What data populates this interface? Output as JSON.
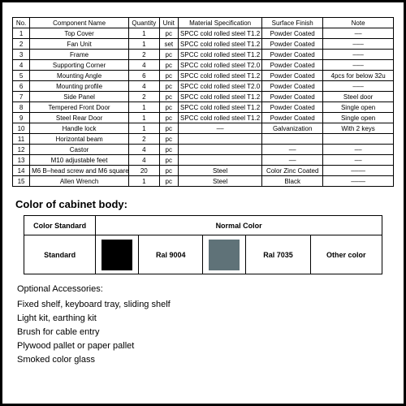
{
  "spec_table": {
    "columns": [
      "No.",
      "Component Name",
      "Quantity",
      "Unit",
      "Material Specification",
      "Surface Finish",
      "Note"
    ],
    "rows": [
      [
        "1",
        "Top Cover",
        "1",
        "pc",
        "SPCC cold rolled steel T1.2",
        "Powder Coated",
        "––"
      ],
      [
        "2",
        "Fan Unit",
        "1",
        "set",
        "SPCC cold rolled steel T1.2",
        "Powder Coated",
        "–––"
      ],
      [
        "3",
        "Frame",
        "2",
        "pc",
        "SPCC cold rolled steel T1.2",
        "Powder Coated",
        "–––"
      ],
      [
        "4",
        "Supporting Corner",
        "4",
        "pc",
        "SPCC cold rolled steel T2.0",
        "Powder Coated",
        "–––"
      ],
      [
        "5",
        "Mounting Angle",
        "6",
        "pc",
        "SPCC cold rolled steel T1.2",
        "Powder Coated",
        "4pcs for below 32u"
      ],
      [
        "6",
        "Mounting profile",
        "4",
        "pc",
        "SPCC cold rolled steel T2.0",
        "Powder Coated",
        "–––"
      ],
      [
        "7",
        "Side Panel",
        "2",
        "pc",
        "SPCC cold rolled steel T1.2",
        "Powder Coated",
        "Steel door"
      ],
      [
        "8",
        "Tempered Front Door",
        "1",
        "pc",
        "SPCC cold rolled steel T1.2",
        "Powder Coated",
        "Single open"
      ],
      [
        "9",
        "Steel Rear Door",
        "1",
        "pc",
        "SPCC cold rolled steel T1.2",
        "Powder Coated",
        "Single open"
      ],
      [
        "10",
        "Handle lock",
        "1",
        "pc",
        "––",
        "Galvanization",
        "With 2 keys"
      ],
      [
        "11",
        "Horizontal beam",
        "2",
        "pc",
        "",
        "",
        ""
      ],
      [
        "12",
        "Castor",
        "4",
        "pc",
        "",
        "––",
        "––"
      ],
      [
        "13",
        "M10 adjustable feet",
        "4",
        "pc",
        "",
        "––",
        "––"
      ],
      [
        "14",
        "M6 B–head screw and M6 square nut",
        "20",
        "pc",
        "Steel",
        "Color Zinc Coated",
        "––––"
      ],
      [
        "15",
        "Allen Wrench",
        "1",
        "pc",
        "Steel",
        "Black",
        "––––"
      ]
    ]
  },
  "section_title": "Color of cabinet body:",
  "color_table": {
    "head_left": "Color Standard",
    "head_right": "Normal Color",
    "row": {
      "standard": "Standard",
      "swatch1_color": "#000000",
      "label1": "Ral 9004",
      "swatch2_color": "#5f7278",
      "label2": "Ral 7035",
      "other": "Other color"
    }
  },
  "accessories": {
    "heading": "Optional Accessories:",
    "lines": [
      "Fixed shelf, keyboard tray, sliding shelf",
      "Light kit, earthing kit",
      "Brush for cable entry",
      "Plywood pallet or paper pallet",
      "Smoked color glass"
    ]
  }
}
